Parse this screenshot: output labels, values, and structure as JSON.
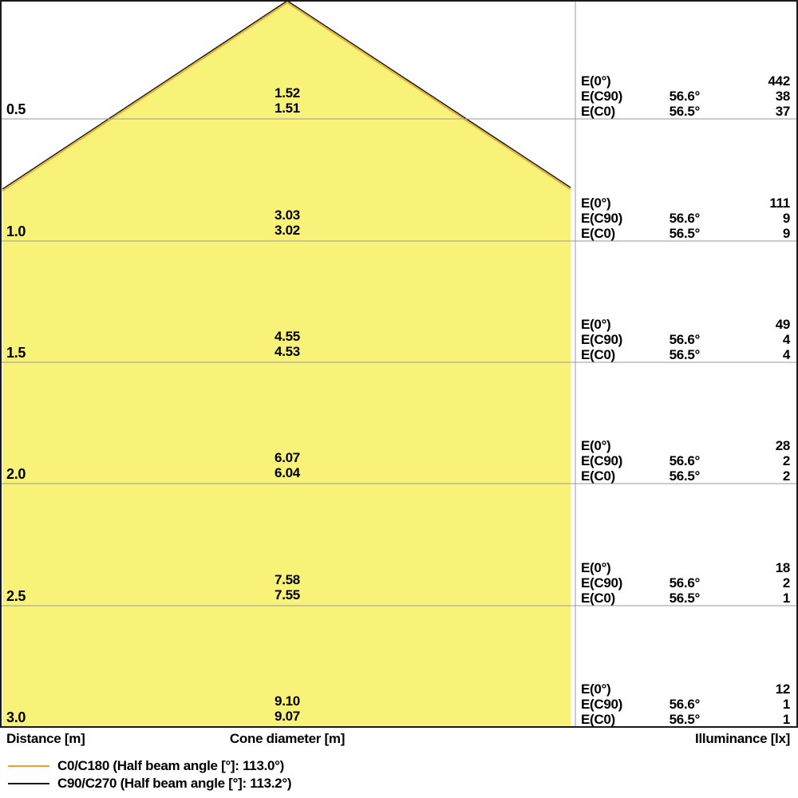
{
  "colors": {
    "cone_fill": "#F8F378",
    "c0_line": "#EAA12F",
    "c90_line": "#1A1A1A",
    "grid": "#999999",
    "border": "#1A1A1A"
  },
  "labels": {
    "e0": "E(0°)",
    "ec90": "E(C90)",
    "ec0": "E(C0)"
  },
  "rows": [
    {
      "distance": "0.5",
      "cone_c90": "1.52",
      "cone_c0": "1.51",
      "e0": "442",
      "angle_c90": "56.6°",
      "e_c90": "38",
      "angle_c0": "56.5°",
      "e_c0": "37"
    },
    {
      "distance": "1.0",
      "cone_c90": "3.03",
      "cone_c0": "3.02",
      "e0": "111",
      "angle_c90": "56.6°",
      "e_c90": "9",
      "angle_c0": "56.5°",
      "e_c0": "9"
    },
    {
      "distance": "1.5",
      "cone_c90": "4.55",
      "cone_c0": "4.53",
      "e0": "49",
      "angle_c90": "56.6°",
      "e_c90": "4",
      "angle_c0": "56.5°",
      "e_c0": "4"
    },
    {
      "distance": "2.0",
      "cone_c90": "6.07",
      "cone_c0": "6.04",
      "e0": "28",
      "angle_c90": "56.6°",
      "e_c90": "2",
      "angle_c0": "56.5°",
      "e_c0": "2"
    },
    {
      "distance": "2.5",
      "cone_c90": "7.58",
      "cone_c0": "7.55",
      "e0": "18",
      "angle_c90": "56.6°",
      "e_c90": "2",
      "angle_c0": "56.5°",
      "e_c0": "1"
    },
    {
      "distance": "3.0",
      "cone_c90": "9.10",
      "cone_c0": "9.07",
      "e0": "12",
      "angle_c90": "56.6°",
      "e_c90": "1",
      "angle_c0": "56.5°",
      "e_c0": "1"
    }
  ],
  "footer": {
    "distance": "Distance [m]",
    "cone_diameter": "Cone diameter [m]",
    "illuminance": "Illuminance [lx]"
  },
  "legend": {
    "items": [
      {
        "label": "C0/C180 (Half beam angle [°]: 113.0°)",
        "color": "#EAA12F"
      },
      {
        "label": "C90/C270 (Half beam angle [°]: 113.2°)",
        "color": "#1A1A1A"
      }
    ]
  },
  "chart_data": {
    "type": "table",
    "title": "Light cone diagram",
    "x": [
      0.5,
      1.0,
      1.5,
      2.0,
      2.5,
      3.0
    ],
    "xlabel": "Distance [m]",
    "series": [
      {
        "name": "Cone diameter C90/C270 [m]",
        "values": [
          1.52,
          3.03,
          4.55,
          6.07,
          7.58,
          9.1
        ]
      },
      {
        "name": "Cone diameter C0/C180 [m]",
        "values": [
          1.51,
          3.02,
          4.53,
          6.04,
          7.55,
          9.07
        ]
      },
      {
        "name": "Illuminance E(0°) [lx]",
        "values": [
          442,
          111,
          49,
          28,
          18,
          12
        ]
      },
      {
        "name": "Illuminance E(C90) [lx]",
        "values": [
          38,
          9,
          4,
          2,
          2,
          1
        ]
      },
      {
        "name": "Illuminance E(C0) [lx]",
        "values": [
          37,
          9,
          4,
          2,
          1,
          1
        ]
      }
    ],
    "annotations": {
      "half_beam_angle_c90": "56.6°",
      "half_beam_angle_c0": "56.5°",
      "legend": [
        "C0/C180 (Half beam angle [°]: 113.0°)",
        "C90/C270 (Half beam angle [°]: 113.2°)"
      ],
      "legend_position": "bottom-left"
    },
    "layout": {
      "cone_apex_at_top": true,
      "grid": "horizontal lines each 0.5 m",
      "value_column_right": true
    }
  }
}
